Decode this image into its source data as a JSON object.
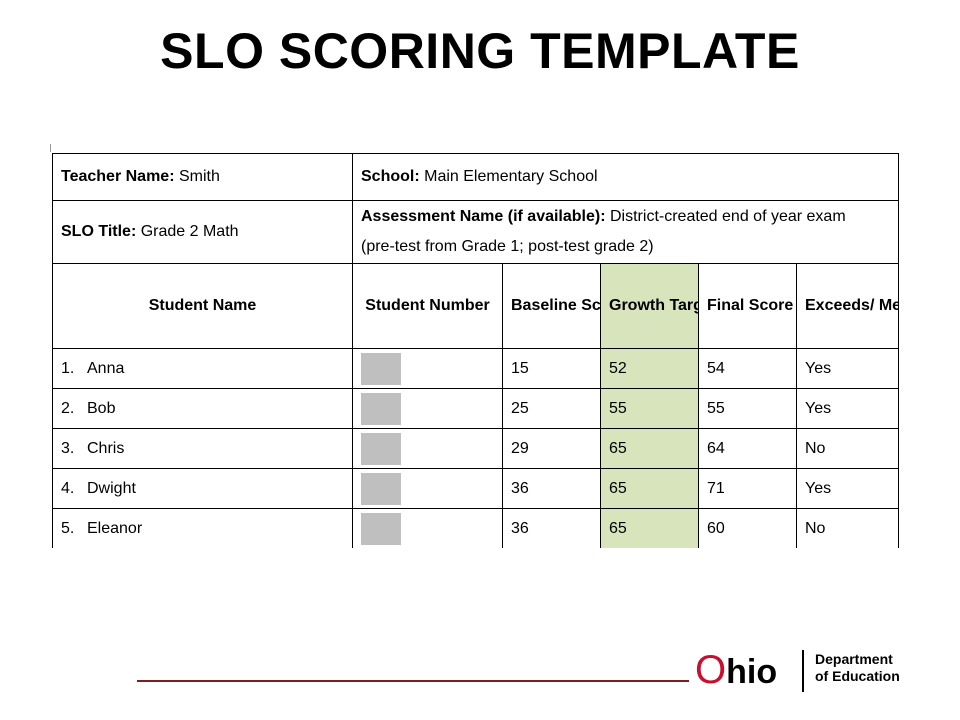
{
  "slide": {
    "title": "SLO SCORING TEMPLATE"
  },
  "info": {
    "teacher_label": "Teacher Name:",
    "teacher_value": "Smith",
    "school_label": "School:",
    "school_value": "Main Elementary School",
    "slo_label": "SLO Title:",
    "slo_value": "Grade 2 Math",
    "assessment_label": "Assessment Name (if available):",
    "assessment_value": "District-created end of year exam",
    "assessment_note": "(pre-test from Grade 1;  post-test grade 2)"
  },
  "columns": {
    "student_name": "Student Name",
    "student_number": "Student Number",
    "baseline": "Baseline Score",
    "growth": "Growth Target",
    "final": "Final Score",
    "exceeds": "Exceeds/ Meets Target? (yes/ no)"
  },
  "rows": [
    {
      "index": "1.",
      "name": "Anna",
      "baseline": "15",
      "growth": "52",
      "final": "54",
      "exceeds": "Yes"
    },
    {
      "index": "2.",
      "name": "Bob",
      "baseline": "25",
      "growth": "55",
      "final": "55",
      "exceeds": "Yes"
    },
    {
      "index": "3.",
      "name": "Chris",
      "baseline": "29",
      "growth": "65",
      "final": "64",
      "exceeds": "No"
    },
    {
      "index": "4.",
      "name": "Dwight",
      "baseline": "36",
      "growth": "65",
      "final": "71",
      "exceeds": "Yes"
    },
    {
      "index": "5.",
      "name": "Eleanor",
      "baseline": "36",
      "growth": "65",
      "final": "60",
      "exceeds": "No"
    }
  ],
  "footer": {
    "logo_o": "O",
    "logo_rest": "hio",
    "dept_line1": "Department",
    "dept_line2": "of Education"
  },
  "colors": {
    "growth_fill": "#d8e4bc",
    "redaction": "#bfbfbf",
    "ohio_red": "#c8102e"
  }
}
